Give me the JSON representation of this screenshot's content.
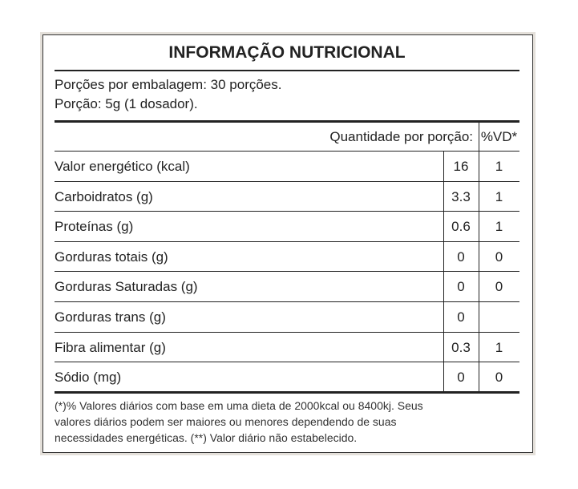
{
  "title": "INFORMAÇÃO NUTRICIONAL",
  "portions": [
    "Porções por embalagem: 30 porções.",
    "Porção: 5g (1 dosador)."
  ],
  "table": {
    "header": [
      "Quantidade por porção:",
      "%VD*"
    ],
    "rows": [
      [
        "Valor energético (kcal)",
        "16",
        "1"
      ],
      [
        "Carboidratos (g)",
        "3.3",
        "1"
      ],
      [
        "Proteínas (g)",
        "0.6",
        "1"
      ],
      [
        "Gorduras totais (g)",
        "0",
        "0"
      ],
      [
        "Gorduras Saturadas (g)",
        "0",
        "0"
      ],
      [
        "Gorduras trans (g)",
        "0",
        null
      ],
      [
        "Fibra alimentar (g)",
        "0.3",
        "1"
      ],
      [
        "Sódio (mg)",
        "0",
        "0"
      ]
    ]
  },
  "footnote": [
    "(*)% Valores diários com base em uma dieta de 2000kcal ou 8400kj. Seus",
    "valores diários podem ser maiores ou menores dependendo de suas",
    "necessidades energéticas. (**) Valor diário não estabelecido."
  ]
}
